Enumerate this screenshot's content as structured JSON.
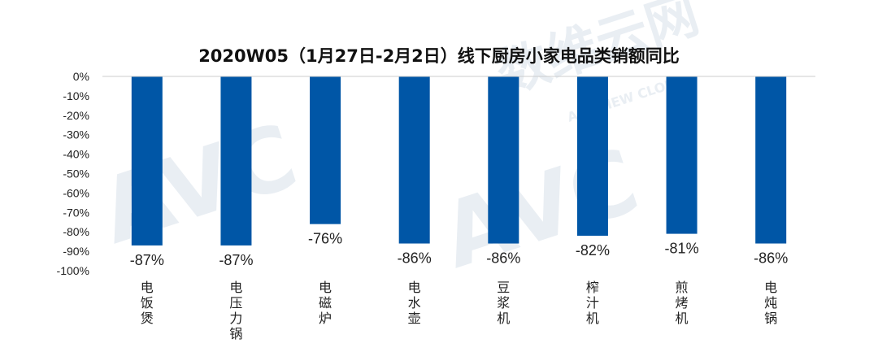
{
  "chart_data": {
    "type": "bar",
    "title": "2020W05（1月27日-2月2日）线下厨房小家电品类销额同比",
    "xlabel": "",
    "ylabel": "",
    "categories": [
      "电饭煲",
      "电压力锅",
      "电磁炉",
      "电水壶",
      "豆浆机",
      "榨汁机",
      "煎烤机",
      "电炖锅"
    ],
    "values": [
      -87,
      -87,
      -76,
      -86,
      -86,
      -82,
      -81,
      -86
    ],
    "data_labels": [
      "-87%",
      "-87%",
      "-76%",
      "-86%",
      "-86%",
      "-82%",
      "-81%",
      "-86%"
    ],
    "yticks": [
      "0%",
      "-10%",
      "-20%",
      "-30%",
      "-40%",
      "-50%",
      "-60%",
      "-70%",
      "-80%",
      "-90%",
      "-100%"
    ],
    "ylim": [
      -100,
      0
    ],
    "grid": false,
    "bar_color": "#0056a6",
    "axis_color": "#cccccc"
  },
  "watermark": {
    "brand": "数维云网",
    "logo": "AVC",
    "sub": "ALL VIEW CLOUD"
  }
}
